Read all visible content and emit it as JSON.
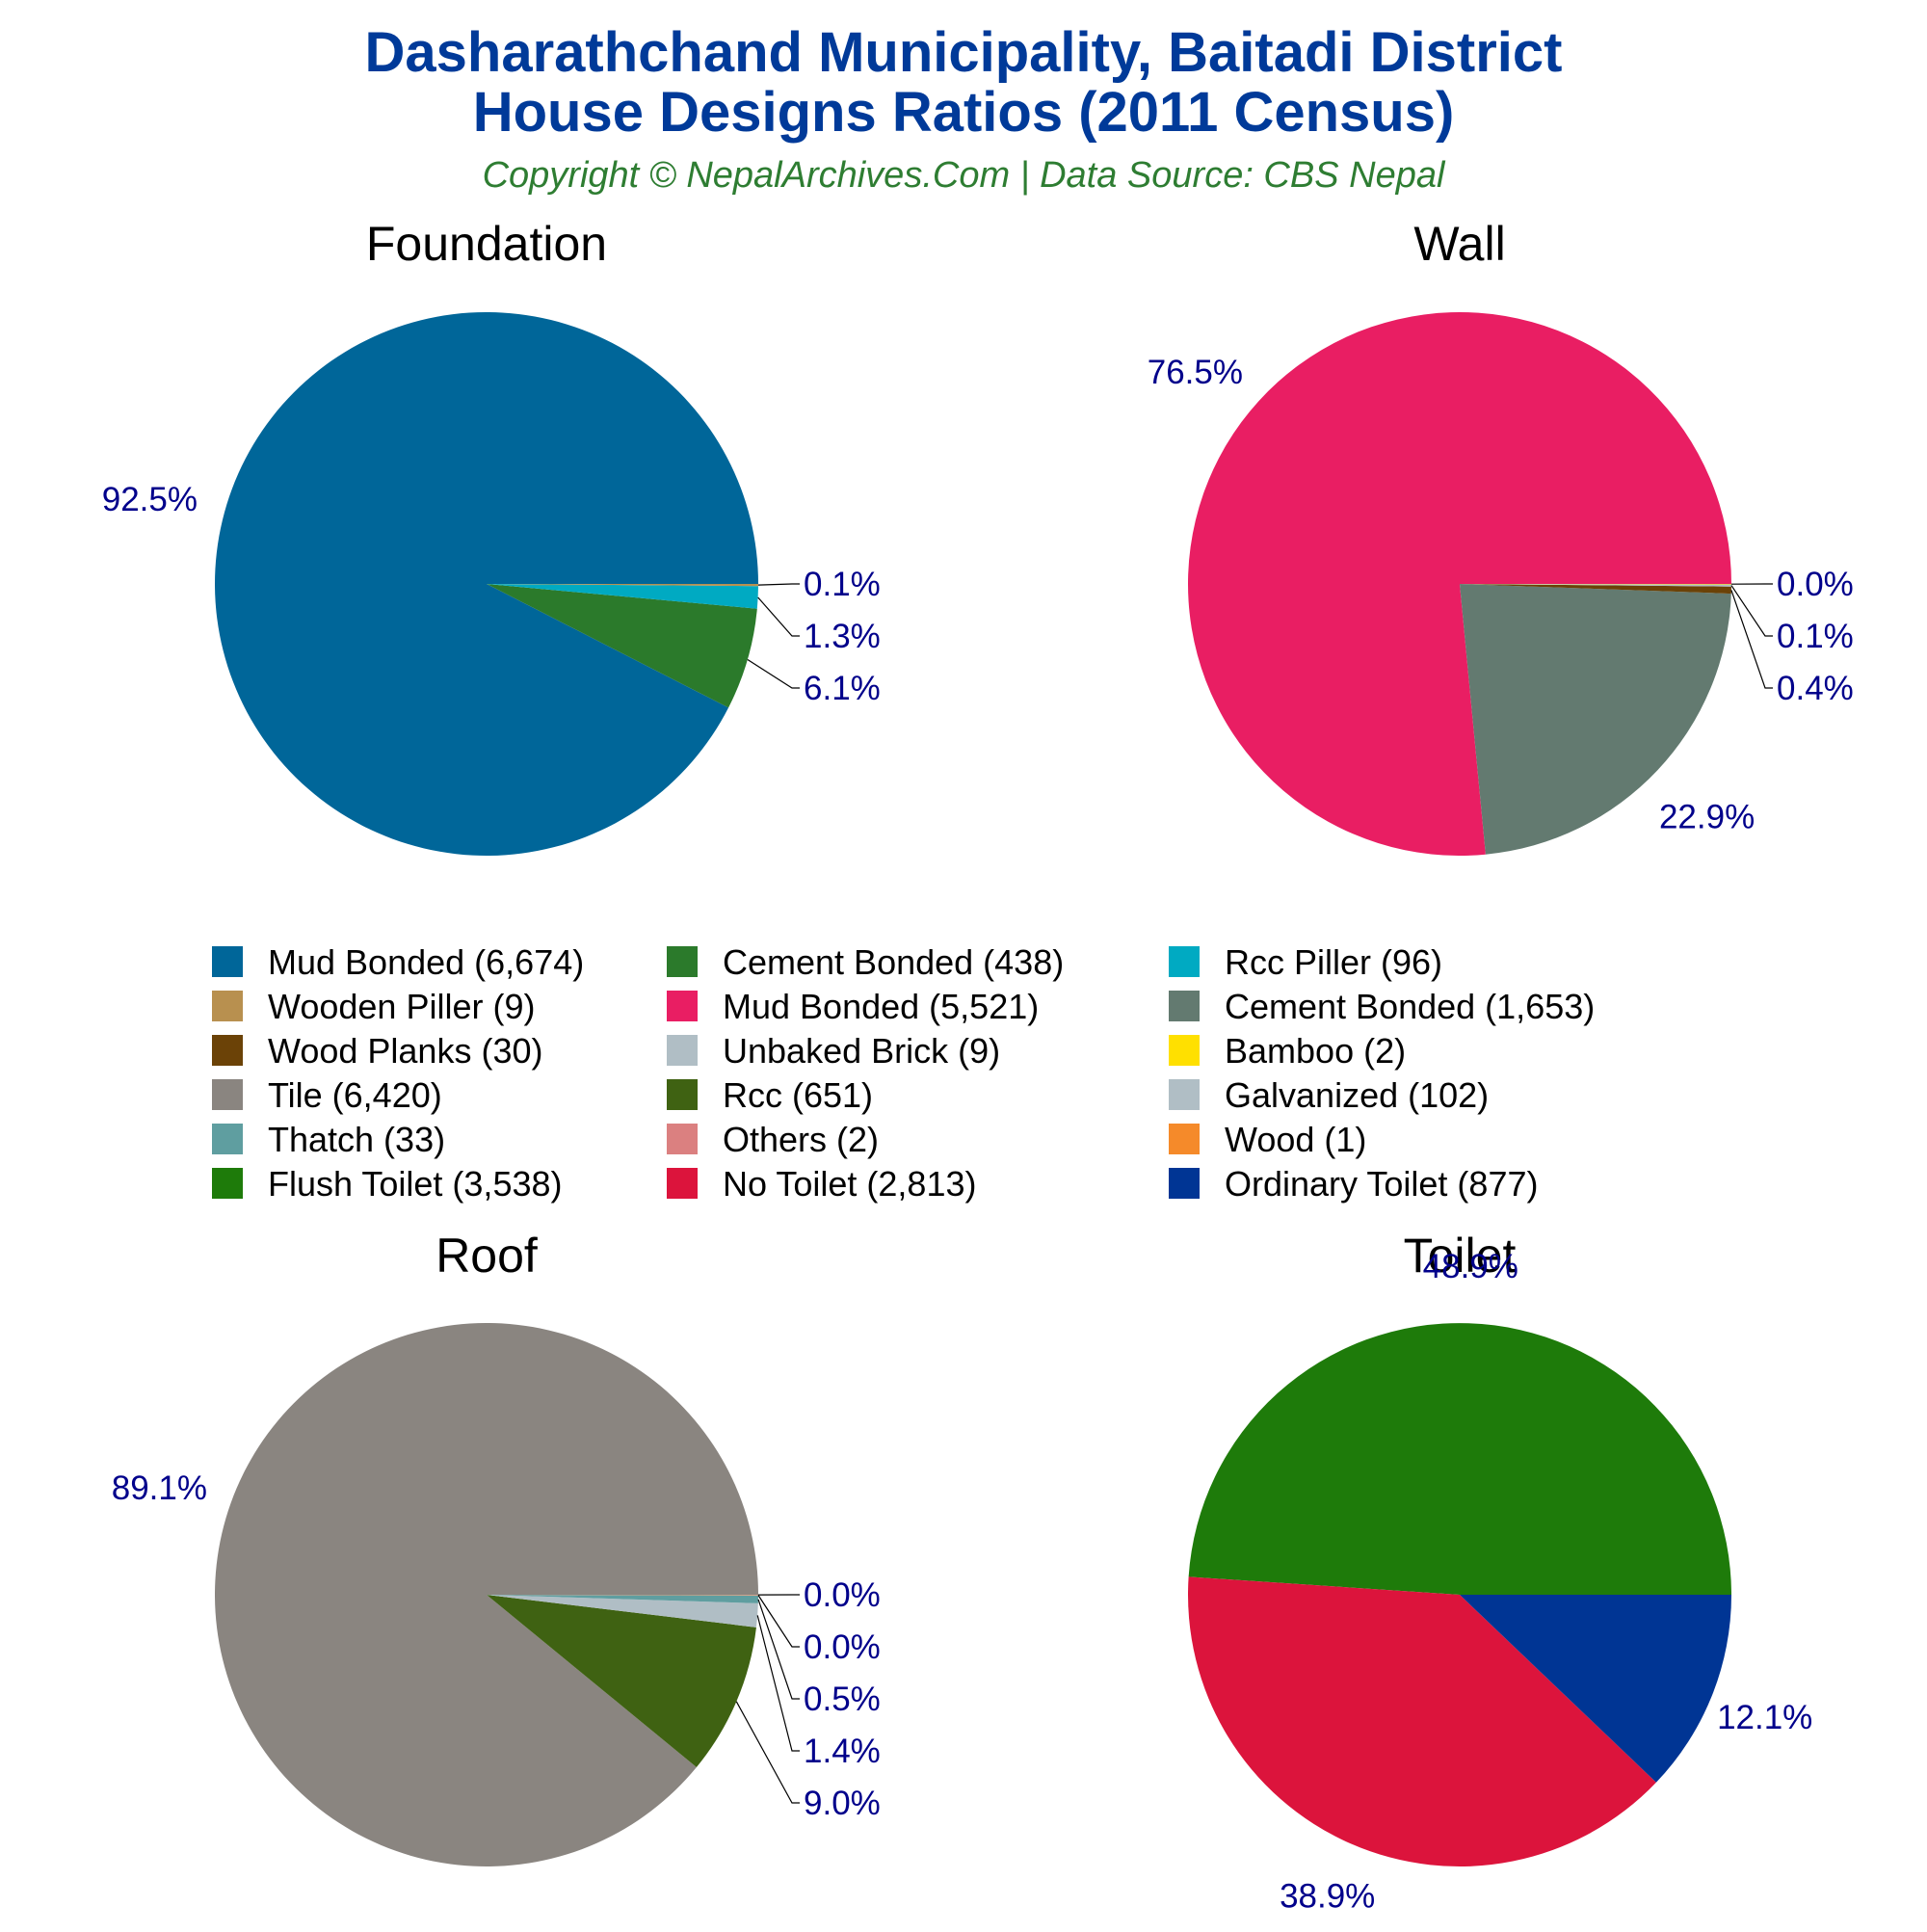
{
  "title_lines": [
    "Dasharathchand Municipality, Baitadi District",
    "House Designs Ratios (2011 Census)"
  ],
  "subtitle": "Copyright © NepalArchives.Com | Data Source: CBS Nepal",
  "colors": {
    "title": "#003a99",
    "subtitle": "#2e7d32",
    "pct_label": "#00008b",
    "leader": "#000000"
  },
  "chart_data": [
    {
      "type": "pie",
      "title": "Foundation",
      "slices": [
        {
          "label": "Mud Bonded",
          "value": 6674,
          "pct_label": "92.5%",
          "color": "#006699"
        },
        {
          "label": "Cement Bonded",
          "value": 438,
          "pct_label": "6.1%",
          "color": "#2b7a2b"
        },
        {
          "label": "Rcc Piller",
          "value": 96,
          "pct_label": "1.3%",
          "color": "#00aac2"
        },
        {
          "label": "Wooden Piller",
          "value": 9,
          "pct_label": "0.1%",
          "color": "#b8904f"
        }
      ]
    },
    {
      "type": "pie",
      "title": "Wall",
      "slices": [
        {
          "label": "Mud Bonded",
          "value": 5521,
          "pct_label": "76.5%",
          "color": "#e91e63"
        },
        {
          "label": "Cement Bonded",
          "value": 1653,
          "pct_label": "22.9%",
          "color": "#637a70"
        },
        {
          "label": "Wood Planks",
          "value": 30,
          "pct_label": "0.4%",
          "color": "#6b4207"
        },
        {
          "label": "Unbaked Brick",
          "value": 9,
          "pct_label": "0.1%",
          "color": "#b0bec5"
        },
        {
          "label": "Bamboo",
          "value": 2,
          "pct_label": "0.0%",
          "color": "#ffe000"
        }
      ]
    },
    {
      "type": "pie",
      "title": "Roof",
      "slices": [
        {
          "label": "Tile",
          "value": 6420,
          "pct_label": "89.1%",
          "color": "#8a8580"
        },
        {
          "label": "Rcc",
          "value": 651,
          "pct_label": "9.0%",
          "color": "#3f6212"
        },
        {
          "label": "Galvanized",
          "value": 102,
          "pct_label": "1.4%",
          "color": "#b0bec5"
        },
        {
          "label": "Thatch",
          "value": 33,
          "pct_label": "0.5%",
          "color": "#5f9ea0"
        },
        {
          "label": "Others",
          "value": 2,
          "pct_label": "0.0%",
          "color": "#db8080"
        },
        {
          "label": "Wood",
          "value": 1,
          "pct_label": "0.0%",
          "color": "#f58a2a"
        }
      ]
    },
    {
      "type": "pie",
      "title": "Toilet",
      "slices": [
        {
          "label": "Flush Toilet",
          "value": 3538,
          "pct_label": "48.9%",
          "color": "#1e7b0a"
        },
        {
          "label": "No Toilet",
          "value": 2813,
          "pct_label": "38.9%",
          "color": "#dc143c"
        },
        {
          "label": "Ordinary Toilet",
          "value": 877,
          "pct_label": "12.1%",
          "color": "#003594"
        }
      ]
    }
  ],
  "legend": [
    {
      "text": "Mud Bonded (6,674)",
      "color": "#006699"
    },
    {
      "text": "Cement Bonded (438)",
      "color": "#2b7a2b"
    },
    {
      "text": "Rcc Piller (96)",
      "color": "#00aac2"
    },
    {
      "text": "Wooden Piller (9)",
      "color": "#b8904f"
    },
    {
      "text": "Mud Bonded (5,521)",
      "color": "#e91e63"
    },
    {
      "text": "Cement Bonded (1,653)",
      "color": "#637a70"
    },
    {
      "text": "Wood Planks (30)",
      "color": "#6b4207"
    },
    {
      "text": "Unbaked Brick (9)",
      "color": "#b0bec5"
    },
    {
      "text": "Bamboo (2)",
      "color": "#ffe000"
    },
    {
      "text": "Tile (6,420)",
      "color": "#8a8580"
    },
    {
      "text": "Rcc (651)",
      "color": "#3f6212"
    },
    {
      "text": "Galvanized (102)",
      "color": "#b0bec5"
    },
    {
      "text": "Thatch (33)",
      "color": "#5f9ea0"
    },
    {
      "text": "Others (2)",
      "color": "#db8080"
    },
    {
      "text": "Wood (1)",
      "color": "#f58a2a"
    },
    {
      "text": "Flush Toilet (3,538)",
      "color": "#1e7b0a"
    },
    {
      "text": "No Toilet (2,813)",
      "color": "#dc143c"
    },
    {
      "text": "Ordinary Toilet (877)",
      "color": "#003594"
    }
  ]
}
